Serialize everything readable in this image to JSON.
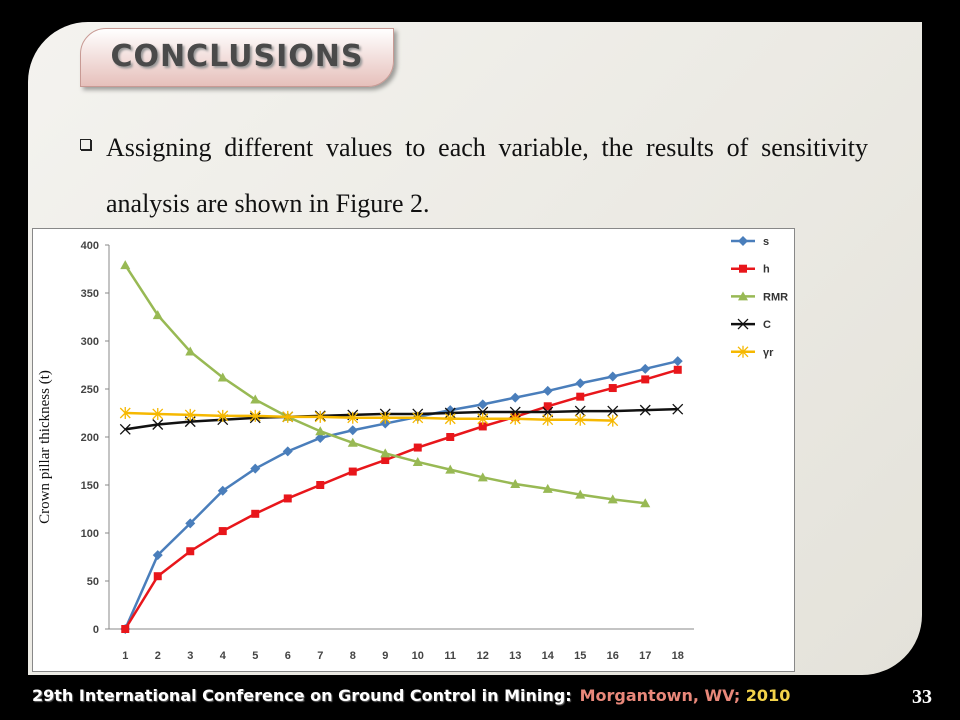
{
  "header": {
    "title": "CONCLUSIONS"
  },
  "body": {
    "bullet": "Assigning different values to each variable, the results of sensitivity analysis are shown in Figure 2."
  },
  "chart_data": {
    "type": "line",
    "ylabel": "Crown pillar thickness (t)",
    "categories": [
      "1",
      "2",
      "3",
      "4",
      "5",
      "6",
      "7",
      "8",
      "9",
      "10",
      "11",
      "12",
      "13",
      "14",
      "15",
      "16",
      "17",
      "18"
    ],
    "ylim": [
      0,
      400
    ],
    "yticks": [
      0,
      50,
      100,
      150,
      200,
      250,
      300,
      350,
      400
    ],
    "grid": false,
    "legend": "right",
    "series": [
      {
        "name": "s",
        "color": "#4a7ebb",
        "marker": "diamond",
        "values": [
          0,
          77,
          110,
          144,
          167,
          185,
          199,
          207,
          214,
          221,
          228,
          234,
          241,
          248,
          256,
          263,
          271,
          279
        ]
      },
      {
        "name": "h",
        "color": "#e8161b",
        "marker": "square",
        "values": [
          0,
          55,
          81,
          102,
          120,
          136,
          150,
          164,
          176,
          189,
          200,
          211,
          221,
          232,
          242,
          251,
          260,
          270
        ]
      },
      {
        "name": "RMR",
        "color": "#98b954",
        "marker": "triangle",
        "values": [
          379,
          327,
          289,
          262,
          239,
          221,
          206,
          194,
          183,
          174,
          166,
          158,
          151,
          146,
          140,
          135,
          131,
          null
        ]
      },
      {
        "name": "C",
        "color": "#111111",
        "marker": "x",
        "values": [
          208,
          213,
          216,
          218,
          220,
          221,
          222,
          223,
          224,
          224,
          225,
          226,
          226,
          226,
          227,
          227,
          228,
          229
        ]
      },
      {
        "name": "γr",
        "color": "#f6b800",
        "marker": "star",
        "values": [
          225,
          224,
          223,
          222,
          222,
          221,
          221,
          220,
          220,
          220,
          219,
          219,
          219,
          218,
          218,
          217,
          null,
          null
        ]
      }
    ]
  },
  "footer": {
    "conference": "29th International Conference on Ground Control in Mining:",
    "location": "Morgantown, WV;",
    "year": "2010",
    "page": "33"
  }
}
